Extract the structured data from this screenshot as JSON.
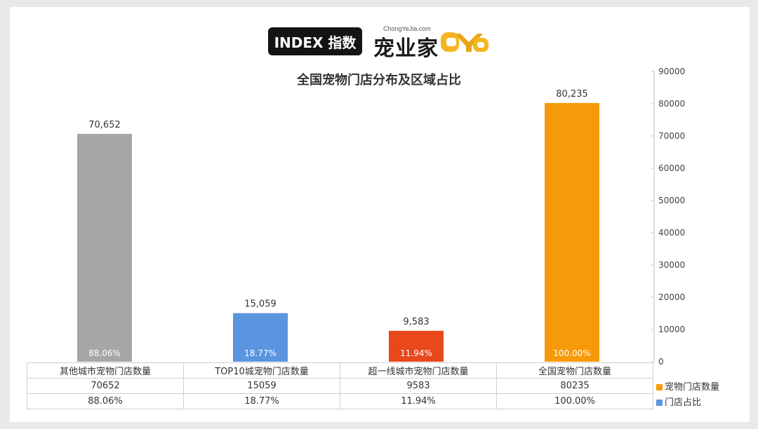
{
  "header": {
    "index_label": "INDEX 指数",
    "brand_cn": "宠业家",
    "brand_en": "ChongYeJia.com"
  },
  "colors": {
    "background": "#e9e9e9",
    "accent": "#f5960a",
    "bars": [
      "#f79a0a",
      "#e8481c",
      "#5b95e0",
      "#a6a6a6"
    ],
    "legend_count": "#f79a0a",
    "legend_ratio": "#5b95e0"
  },
  "chart_data": {
    "type": "bar",
    "title": "全国宠物门店分布及区域占比",
    "categories": [
      "全国宠物门店数量",
      "超一线城市宠物门店数量",
      "TOP10城宠物门店数量",
      "其他城市宠物门店数量"
    ],
    "series": [
      {
        "name": "宠物门店数量",
        "values": [
          80235,
          9583,
          15059,
          70652
        ],
        "value_labels": [
          "80,235",
          "9,583",
          "15,059",
          "70,652"
        ],
        "table_labels": [
          "80235",
          "9583",
          "15059",
          "70652"
        ]
      },
      {
        "name": "门店占比",
        "values": [
          100.0,
          11.94,
          18.77,
          88.06
        ],
        "value_labels": [
          "100.00%",
          "11.94%",
          "18.77%",
          "88.06%"
        ]
      }
    ],
    "ylim": [
      0,
      90000
    ],
    "yticks": [
      "0",
      "10000",
      "20000",
      "30000",
      "40000",
      "50000",
      "60000",
      "70000",
      "80000",
      "90000"
    ],
    "grid": false,
    "legend": "data table"
  }
}
